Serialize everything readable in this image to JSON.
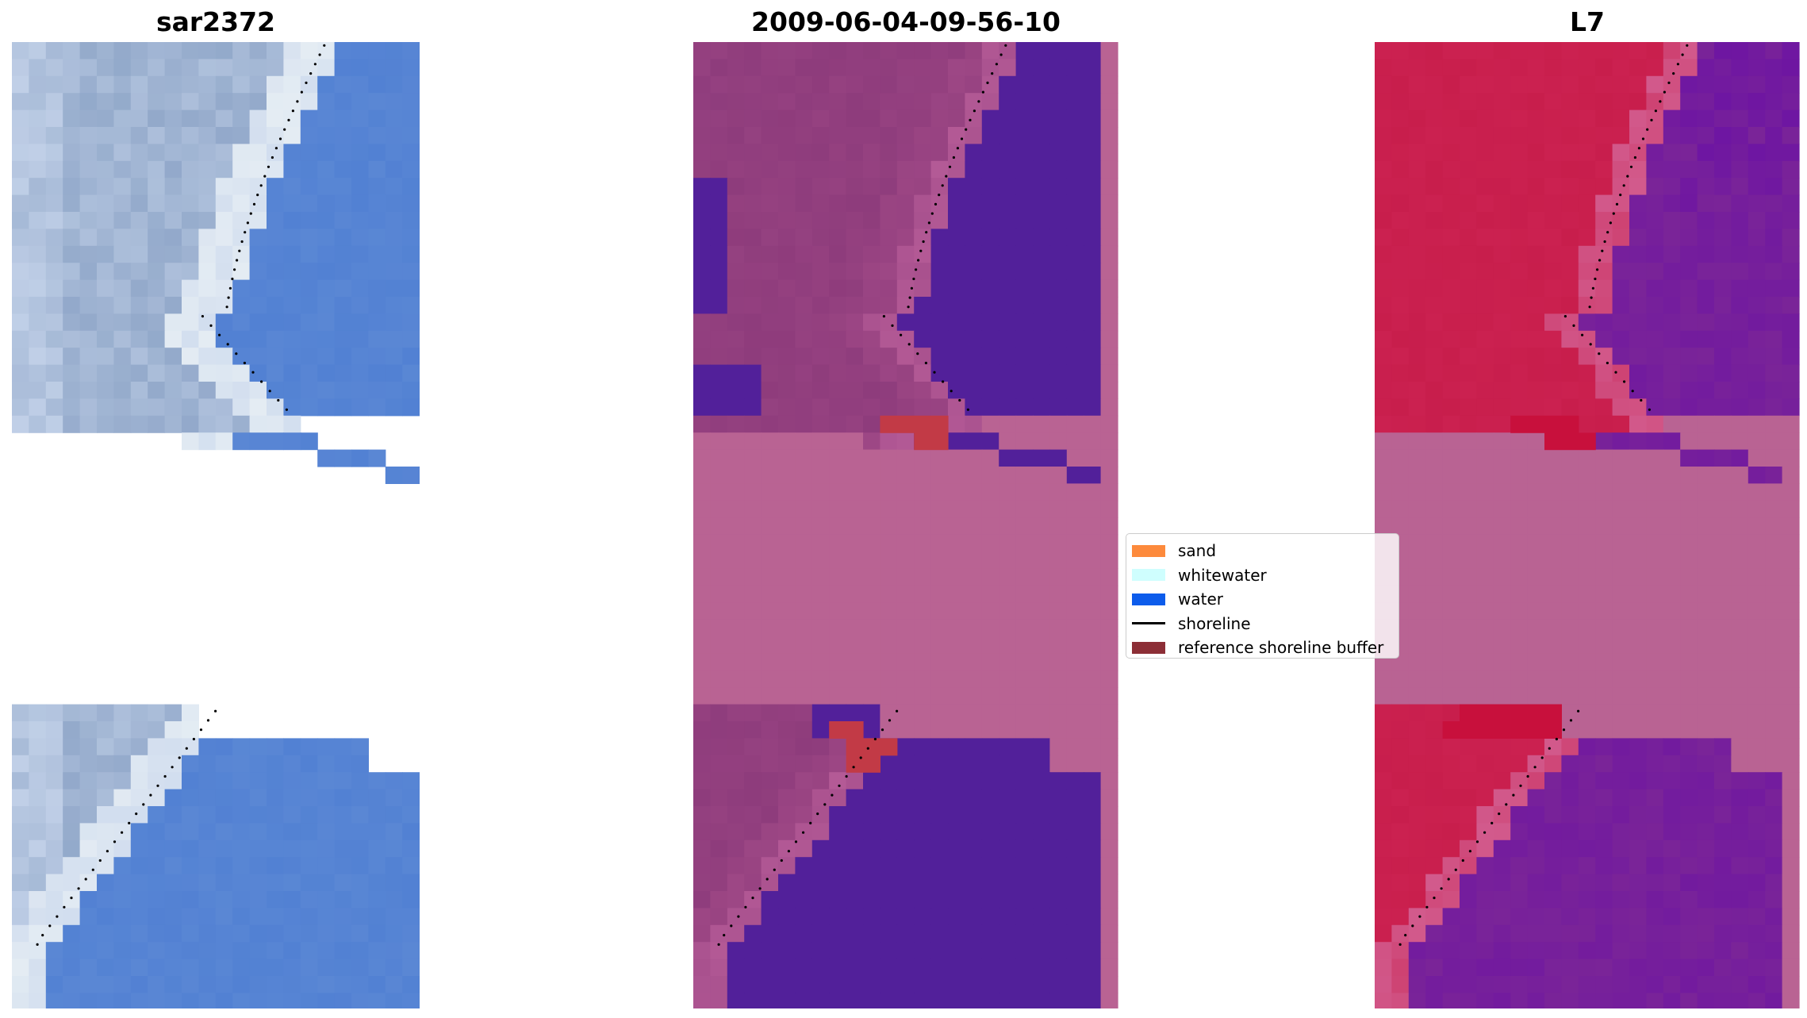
{
  "panels": [
    {
      "title": "sar2372",
      "style": "rgb"
    },
    {
      "title": "2009-06-04-09-56-10",
      "style": "classified"
    },
    {
      "title": "L7",
      "style": "index"
    }
  ],
  "legend": {
    "placement": "center",
    "items": [
      {
        "label": "sand",
        "color": "#fd8a3c",
        "kind": "patch"
      },
      {
        "label": "whitewater",
        "color": "#cffefe",
        "kind": "patch"
      },
      {
        "label": "water",
        "color": "#0d5ceb",
        "kind": "patch"
      },
      {
        "label": "shoreline",
        "color": "#000000",
        "kind": "line"
      },
      {
        "label": "reference shoreline buffer",
        "color": "#8c2e36",
        "kind": "patch"
      }
    ]
  },
  "colors": {
    "nodata_overlay": "#b96393",
    "classified_water": "#52209a",
    "classified_land": "#8e3c7c",
    "classified_buffer": "#c23a46",
    "index_land": "#c81e4c",
    "index_water": "#7a2498",
    "rgb_water": "#5a87d4",
    "rgb_sand": "#c8d6ec",
    "shoreline_dots": "#000000"
  }
}
